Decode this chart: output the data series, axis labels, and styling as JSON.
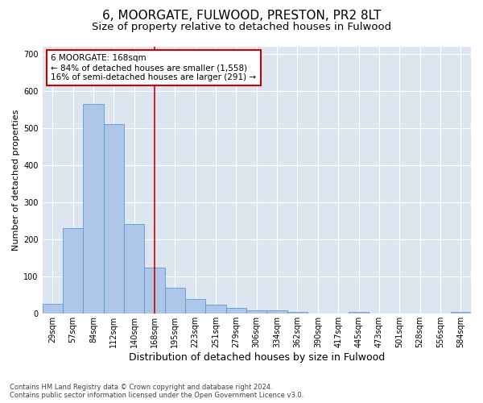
{
  "title1": "6, MOORGATE, FULWOOD, PRESTON, PR2 8LT",
  "title2": "Size of property relative to detached houses in Fulwood",
  "xlabel": "Distribution of detached houses by size in Fulwood",
  "ylabel": "Number of detached properties",
  "footnote": "Contains HM Land Registry data © Crown copyright and database right 2024.\nContains public sector information licensed under the Open Government Licence v3.0.",
  "bin_labels": [
    "29sqm",
    "57sqm",
    "84sqm",
    "112sqm",
    "140sqm",
    "168sqm",
    "195sqm",
    "223sqm",
    "251sqm",
    "279sqm",
    "306sqm",
    "334sqm",
    "362sqm",
    "390sqm",
    "417sqm",
    "445sqm",
    "473sqm",
    "501sqm",
    "528sqm",
    "556sqm",
    "584sqm"
  ],
  "bar_heights": [
    27,
    230,
    565,
    510,
    242,
    125,
    70,
    40,
    25,
    15,
    10,
    10,
    5,
    0,
    0,
    5,
    0,
    0,
    0,
    0,
    5
  ],
  "bar_color": "#aec6e8",
  "bar_edge_color": "#5b9bd5",
  "vline_x_idx": 5,
  "vline_color": "#cc0000",
  "annotation_text": "6 MOORGATE: 168sqm\n← 84% of detached houses are smaller (1,558)\n16% of semi-detached houses are larger (291) →",
  "annotation_box_color": "white",
  "annotation_box_edge": "#cc0000",
  "ylim": [
    0,
    720
  ],
  "yticks": [
    0,
    100,
    200,
    300,
    400,
    500,
    600,
    700
  ],
  "background_color": "#dde5f0",
  "grid_color": "white",
  "title1_fontsize": 11,
  "title2_fontsize": 9.5,
  "xlabel_fontsize": 9,
  "ylabel_fontsize": 8,
  "annot_fontsize": 7.5,
  "tick_fontsize": 7
}
